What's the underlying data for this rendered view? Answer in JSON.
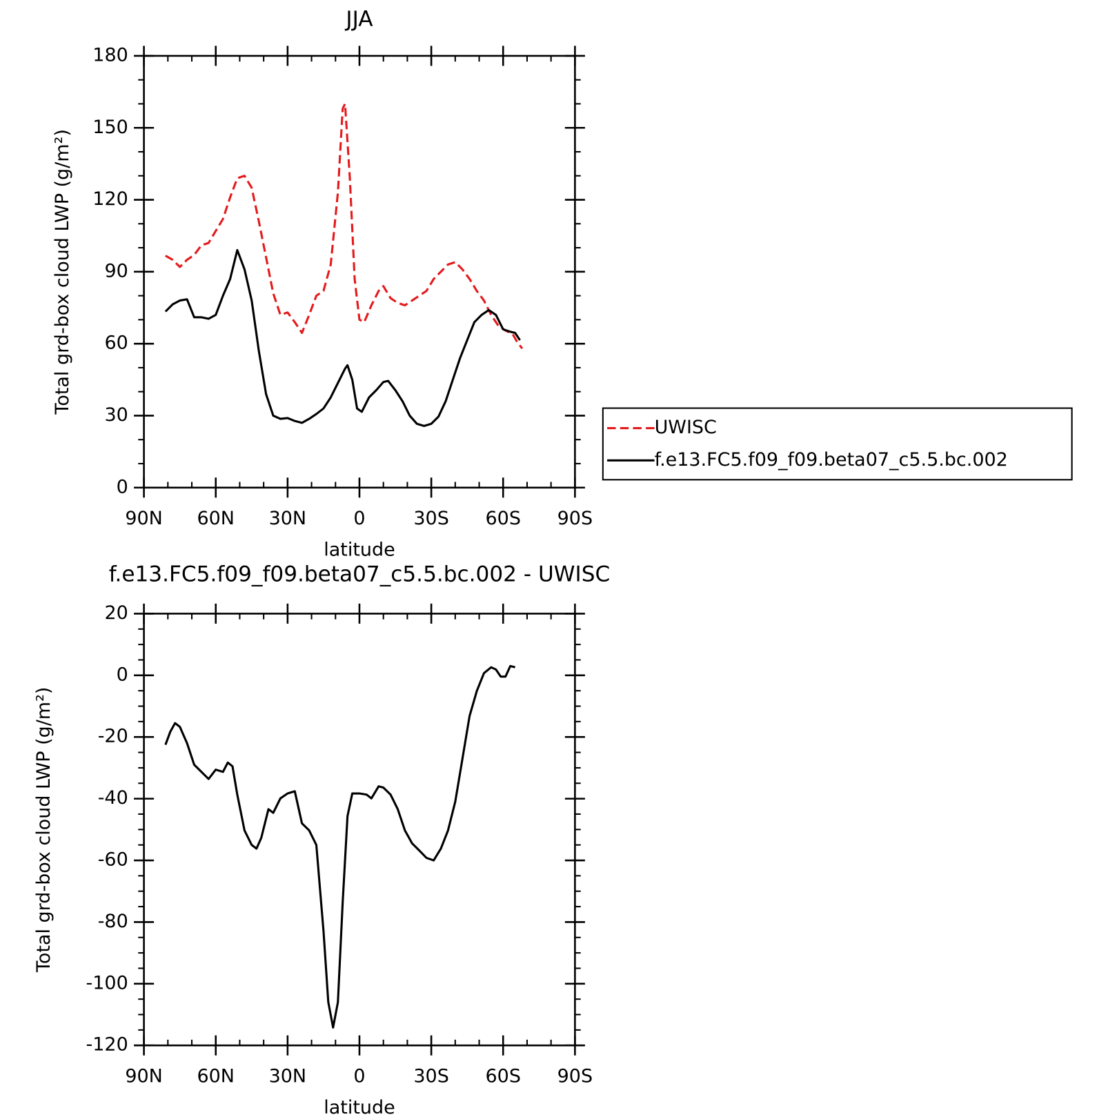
{
  "chart_data": [
    {
      "type": "line",
      "title": "JJA",
      "xlabel": "latitude",
      "ylabel": "Total grd-box cloud LWP (g/m²)",
      "xlim": [
        90,
        -90
      ],
      "xticks": [
        {
          "value": 90,
          "label": "90N"
        },
        {
          "value": 60,
          "label": "60N"
        },
        {
          "value": 30,
          "label": "30N"
        },
        0,
        {
          "value": -30,
          "label": "30S"
        },
        {
          "value": -60,
          "label": "60S"
        },
        {
          "value": -90,
          "label": "90S"
        }
      ],
      "ylim": [
        0,
        180
      ],
      "yticks": [
        0,
        30,
        60,
        90,
        120,
        150,
        180
      ],
      "legend": "outside right",
      "series": [
        {
          "name": "UWISC",
          "color": "#e41a1c",
          "dash": true,
          "x": [
            81,
            78,
            75,
            72,
            69,
            66,
            63,
            60,
            57,
            54,
            51,
            48,
            45,
            42,
            39,
            36,
            33,
            30,
            27,
            24,
            21,
            18,
            15,
            12,
            9,
            7,
            6,
            4,
            2,
            0,
            -2,
            -5,
            -8,
            -10,
            -13,
            -16,
            -19,
            -22,
            -25,
            -28,
            -31,
            -34,
            -37,
            -40,
            -43,
            -46,
            -49,
            -52,
            -55,
            -58,
            -61,
            -64,
            -66,
            -68
          ],
          "values": [
            96.7,
            95,
            92,
            95,
            97,
            101,
            102,
            107,
            112,
            121,
            129,
            130,
            125,
            111,
            96,
            81,
            72,
            73,
            69,
            64.5,
            72,
            80,
            82,
            93,
            123,
            158,
            160,
            129,
            87,
            70,
            69,
            76,
            82,
            84,
            79,
            77,
            76,
            78,
            80,
            82,
            87,
            90,
            93,
            94,
            91,
            87,
            82,
            78,
            72,
            67.5,
            65.5,
            64,
            60.5,
            58
          ]
        },
        {
          "name": "f.e13.FC5.f09_f09.beta07_c5.5.bc.002",
          "color": "#000000",
          "dash": false,
          "x": [
            81,
            78,
            75,
            72,
            69,
            66,
            63,
            60,
            57,
            54,
            51,
            48,
            45,
            42,
            39,
            36,
            33,
            30,
            27,
            24,
            21,
            18,
            15,
            12,
            9,
            6,
            5,
            3,
            1,
            -1,
            -4,
            -7,
            -10,
            -12,
            -15,
            -18,
            -21,
            -24,
            -27,
            -30,
            -33,
            -36,
            -39,
            -42,
            -45,
            -48,
            -51,
            -54,
            -57,
            -60,
            -63,
            -65,
            -67
          ],
          "values": [
            73.4,
            76.4,
            78,
            78.5,
            71,
            71,
            70.4,
            72,
            80,
            87,
            99,
            91,
            78,
            57,
            39,
            30,
            28.7,
            29,
            27.8,
            27,
            28.7,
            30.7,
            33,
            37.6,
            43.6,
            49.6,
            51,
            45,
            33,
            31.6,
            37.6,
            40.6,
            44,
            44.5,
            40.6,
            36,
            30,
            26.6,
            25.7,
            26.6,
            29.6,
            36,
            45,
            54,
            61.5,
            69,
            72,
            74,
            72,
            66,
            65,
            64.5,
            61.5
          ]
        }
      ]
    },
    {
      "type": "line",
      "title": "f.e13.FC5.f09_f09.beta07_c5.5.bc.002 - UWISC",
      "xlabel": "latitude",
      "ylabel": "Total grd-box cloud LWP (g/m²)",
      "xlim": [
        90,
        -90
      ],
      "xticks": [
        {
          "value": 90,
          "label": "90N"
        },
        {
          "value": 60,
          "label": "60N"
        },
        {
          "value": 30,
          "label": "30N"
        },
        0,
        {
          "value": -30,
          "label": "30S"
        },
        {
          "value": -60,
          "label": "60S"
        },
        {
          "value": -90,
          "label": "90S"
        }
      ],
      "ylim": [
        -120,
        20
      ],
      "yticks": [
        -120,
        -100,
        -80,
        -60,
        -40,
        -20,
        0,
        20
      ],
      "series": [
        {
          "color": "#000000",
          "dash": false,
          "x": [
            81,
            79,
            77,
            75,
            72,
            69,
            66,
            63,
            60,
            57,
            55,
            53,
            51,
            48,
            45,
            43,
            41,
            38,
            36,
            33,
            30,
            27,
            24,
            21,
            18,
            15,
            13,
            11,
            9,
            7,
            5,
            3,
            0,
            -3,
            -5,
            -8,
            -10,
            -13,
            -16,
            -19,
            -22,
            -25,
            -28,
            -31,
            -34,
            -37,
            -40,
            -43,
            -46,
            -49,
            -52,
            -55,
            -57,
            -59,
            -61,
            -63,
            -65
          ],
          "values": [
            -22.5,
            -18.3,
            -15.5,
            -16.7,
            -22,
            -29,
            -31.3,
            -33.6,
            -30.6,
            -31.3,
            -28.3,
            -29.5,
            -38.7,
            -50.3,
            -55,
            -56.2,
            -52.7,
            -43.4,
            -44.6,
            -39.9,
            -38.3,
            -37.6,
            -48,
            -50.3,
            -55,
            -82.9,
            -106,
            -114.2,
            -106,
            -73.6,
            -45.7,
            -38.3,
            -38.3,
            -38.7,
            -39.9,
            -36,
            -36.4,
            -38.7,
            -43.4,
            -50.3,
            -54.5,
            -56.8,
            -59.2,
            -60,
            -56.2,
            -50.3,
            -41,
            -27.1,
            -13.2,
            -5.1,
            0.7,
            2.6,
            1.9,
            -0.4,
            -0.4,
            3,
            2.6
          ]
        }
      ]
    }
  ]
}
